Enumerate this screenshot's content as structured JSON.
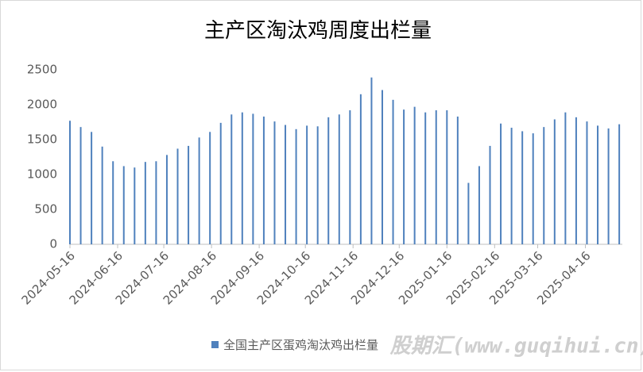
{
  "chart_data": {
    "type": "bar",
    "title": "主产区淘汰鸡周度出栏量",
    "x": [
      "2024-05-16",
      "2024-05-23",
      "2024-05-30",
      "2024-06-06",
      "2024-06-13",
      "2024-06-20",
      "2024-06-27",
      "2024-07-04",
      "2024-07-11",
      "2024-07-18",
      "2024-07-25",
      "2024-08-01",
      "2024-08-08",
      "2024-08-15",
      "2024-08-22",
      "2024-08-29",
      "2024-09-05",
      "2024-09-12",
      "2024-09-19",
      "2024-09-26",
      "2024-10-03",
      "2024-10-10",
      "2024-10-17",
      "2024-10-24",
      "2024-10-31",
      "2024-11-07",
      "2024-11-14",
      "2024-11-21",
      "2024-11-28",
      "2024-12-05",
      "2024-12-12",
      "2024-12-19",
      "2024-12-26",
      "2025-01-02",
      "2025-01-09",
      "2025-01-16",
      "2025-01-23",
      "2025-01-30",
      "2025-02-06",
      "2025-02-13",
      "2025-02-20",
      "2025-02-27",
      "2025-03-06",
      "2025-03-13",
      "2025-03-20",
      "2025-03-27",
      "2025-04-03",
      "2025-04-10",
      "2025-04-17",
      "2025-04-24",
      "2025-05-01",
      "2025-05-08"
    ],
    "series": [
      {
        "name": "全国主产区蛋鸡淘汰鸡出栏量",
        "color": "#4f81bd",
        "values": [
          1770,
          1680,
          1610,
          1400,
          1190,
          1120,
          1100,
          1180,
          1190,
          1280,
          1370,
          1410,
          1530,
          1610,
          1740,
          1860,
          1890,
          1870,
          1830,
          1760,
          1710,
          1650,
          1700,
          1690,
          1820,
          1860,
          1920,
          2150,
          2390,
          2210,
          2070,
          1930,
          1970,
          1890,
          1920,
          1920,
          1830,
          880,
          1120,
          1410,
          1730,
          1670,
          1620,
          1590,
          1680,
          1790,
          1890,
          1820,
          1760,
          1700,
          1660,
          1720
        ]
      }
    ],
    "xlim": [
      "2024-05-16",
      "2025-05-10"
    ],
    "xticks": [
      "2024-05-16",
      "2024-06-16",
      "2024-07-16",
      "2024-08-16",
      "2024-09-16",
      "2024-10-16",
      "2024-11-16",
      "2024-12-16",
      "2025-01-16",
      "2025-02-16",
      "2025-03-16",
      "2025-04-16"
    ],
    "ylim": [
      0,
      2500
    ],
    "yticks": [
      0,
      500,
      1000,
      1500,
      2000,
      2500
    ],
    "grid": false,
    "legend": "bottom",
    "annotation": "股期汇(www.guqihui.cn)"
  }
}
